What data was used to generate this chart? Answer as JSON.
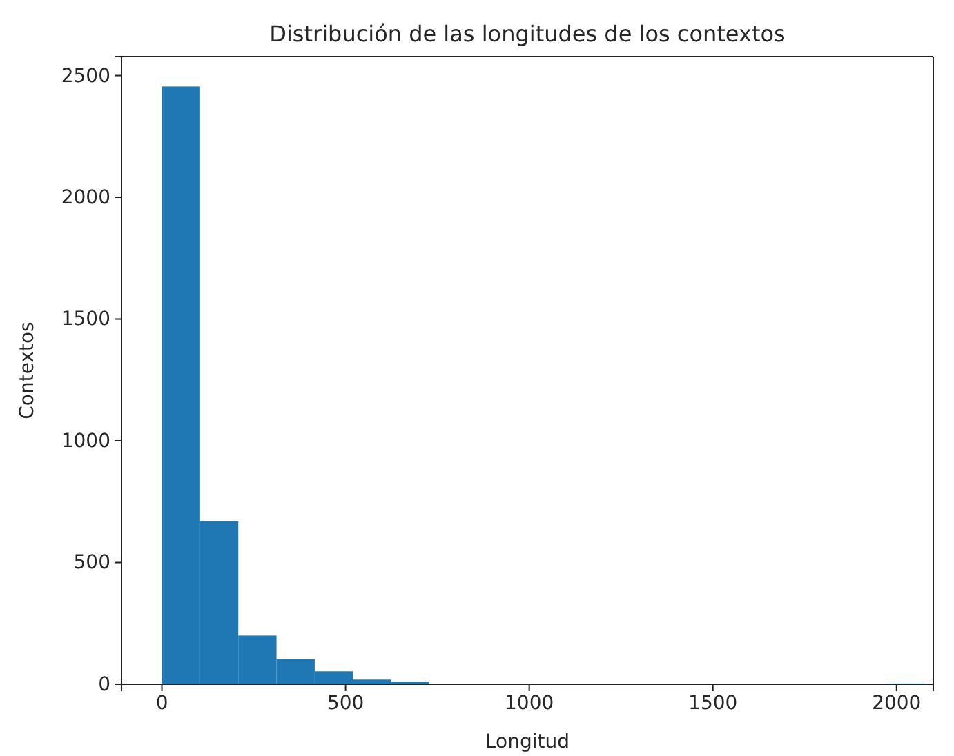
{
  "chart_data": {
    "type": "histogram",
    "title": "Distribución de las longitudes de los contextos",
    "xlabel": "Longitud",
    "ylabel": "Contextos",
    "bins": [
      0,
      104,
      208,
      312,
      416,
      520,
      624,
      728,
      832,
      936,
      1040,
      1144,
      1248,
      1352,
      1456,
      1560,
      1664,
      1768,
      1872,
      1976,
      2080
    ],
    "values": [
      2455,
      669,
      200,
      102,
      53,
      19,
      10,
      0,
      0,
      0,
      0,
      0,
      0,
      0,
      0,
      0,
      0,
      0,
      0,
      3
    ],
    "color": "#1f77b4",
    "xlim": [
      -110,
      2100
    ],
    "xticks": [
      0,
      500,
      1000,
      1500,
      2000
    ],
    "ylim": [
      0,
      2578
    ],
    "yticks": [
      0,
      500,
      1000,
      1500,
      2000,
      2500
    ],
    "grid": false
  }
}
